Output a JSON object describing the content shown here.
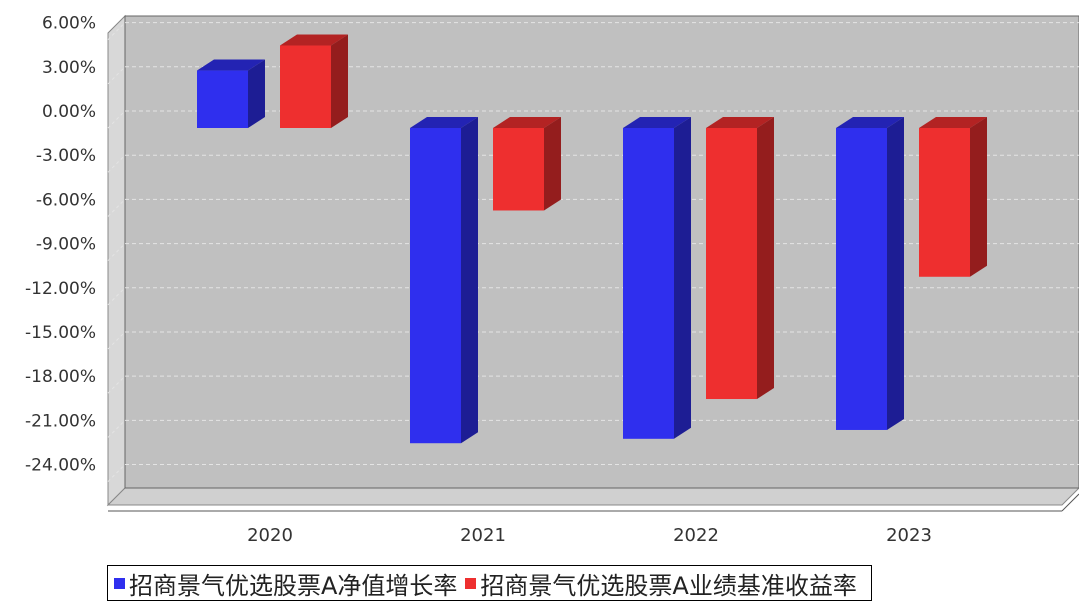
{
  "chart_data": {
    "type": "bar",
    "categories": [
      "2020",
      "2021",
      "2022",
      "2023"
    ],
    "series": [
      {
        "name": "招商景气优选股票A净值增长率",
        "color": "#2f2fee",
        "values": [
          3.9,
          -21.4,
          -21.1,
          -20.5
        ]
      },
      {
        "name": "招商景气优选股票A业绩基准收益率",
        "color": "#ee2f2f",
        "values": [
          5.6,
          -5.6,
          -18.4,
          -10.1
        ]
      }
    ],
    "y_ticks": [
      "6.00%",
      "3.00%",
      "0.00%",
      "-3.00%",
      "-6.00%",
      "-9.00%",
      "-12.00%",
      "-15.00%",
      "-18.00%",
      "-21.00%",
      "-24.00%"
    ],
    "ylim": [
      -25.5,
      6.5
    ],
    "grid": true,
    "legend_position": "bottom",
    "title": "",
    "xlabel": "",
    "ylabel": ""
  }
}
